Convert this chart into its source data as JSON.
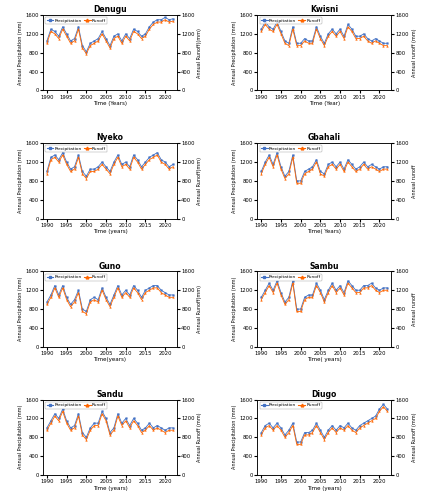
{
  "subplots": [
    {
      "title": "Denugu",
      "xlabel": "Time (Years)",
      "ylim": [
        0,
        1600
      ],
      "runoff_ylim": [
        0,
        1600
      ]
    },
    {
      "title": "Kwisni",
      "xlabel": "Time (Year)",
      "ylim": [
        0,
        1600
      ],
      "runoff_ylim": [
        0,
        1600
      ]
    },
    {
      "title": "Nyeko",
      "xlabel": "Time (years)",
      "ylim": [
        0,
        1600
      ],
      "runoff_ylim": [
        0,
        1600
      ]
    },
    {
      "title": "Gbahali",
      "xlabel": "Time( Years)",
      "ylim": [
        0,
        1600
      ],
      "runoff_ylim": [
        0,
        1600
      ]
    },
    {
      "title": "Guno",
      "xlabel": "Time(years)",
      "ylim": [
        0,
        1600
      ],
      "runoff_ylim": [
        0,
        1600
      ]
    },
    {
      "title": "Sambu",
      "xlabel": "Time( years)",
      "ylim": [
        0,
        1600
      ],
      "runoff_ylim": [
        0,
        1600
      ]
    },
    {
      "title": "Sandu",
      "xlabel": "Time (years)",
      "ylim": [
        0,
        1600
      ],
      "runoff_ylim": [
        0,
        1600
      ]
    },
    {
      "title": "Diugo",
      "xlabel": "Time (years)",
      "ylim": [
        0,
        1600
      ],
      "runoff_ylim": [
        0,
        1600
      ]
    }
  ],
  "years": [
    1990,
    1991,
    1992,
    1993,
    1994,
    1995,
    1996,
    1997,
    1998,
    1999,
    2000,
    2001,
    2002,
    2003,
    2004,
    2005,
    2006,
    2007,
    2008,
    2009,
    2010,
    2011,
    2012,
    2013,
    2014,
    2015,
    2016,
    2017,
    2018,
    2019,
    2020,
    2021,
    2022
  ],
  "precip_color": "#4472C4",
  "runoff_color": "#FF6600",
  "precip_label": "Precipitation",
  "runoff_label": "Runoff",
  "xticks": [
    1990,
    1995,
    2000,
    2005,
    2010,
    2015,
    2020
  ],
  "yticks": [
    0,
    400,
    800,
    1200,
    1600
  ],
  "right_ylabels": [
    "Annual Runoff((mm)",
    "Annual runoff (mm)",
    "Annual Runoff(mm)",
    "Annual runoff",
    "Annual Runoff(mm)",
    "Annual runoff",
    "Annual Runoff (mm)",
    "Annual Runoff (mm)"
  ],
  "left_ylabels": [
    "Annual Precipitation (mm)",
    "Annual Precipitation (mm)",
    "Annual Precipitation (mm)",
    "Annual Precipitation (mm)",
    "Annual Precipitation (mm)",
    "Annual Precipitation (mm)",
    "Annual Precipitation (mm)",
    "Annual Precipitation (mm)"
  ],
  "data": {
    "Denugu": {
      "precip": [
        1050,
        1300,
        1250,
        1150,
        1350,
        1200,
        1050,
        1100,
        1350,
        950,
        820,
        1000,
        1050,
        1100,
        1250,
        1100,
        950,
        1150,
        1200,
        1050,
        1200,
        1100,
        1300,
        1250,
        1150,
        1200,
        1350,
        1450,
        1500,
        1500,
        1550,
        1500,
        1520
      ],
      "runoff": [
        1000,
        1250,
        1200,
        1100,
        1300,
        1150,
        1000,
        1050,
        1300,
        900,
        780,
        950,
        1000,
        1050,
        1200,
        1050,
        900,
        1100,
        1150,
        1000,
        1150,
        1050,
        1250,
        1200,
        1100,
        1150,
        1300,
        1400,
        1450,
        1450,
        1500,
        1450,
        1470
      ]
    },
    "Kwisni": {
      "precip": [
        1300,
        1450,
        1350,
        1300,
        1450,
        1250,
        1050,
        1000,
        1350,
        1000,
        1000,
        1100,
        1050,
        1050,
        1350,
        1150,
        1000,
        1200,
        1300,
        1200,
        1300,
        1150,
        1400,
        1300,
        1150,
        1150,
        1200,
        1100,
        1050,
        1100,
        1050,
        1000,
        1000
      ],
      "runoff": [
        1250,
        1400,
        1300,
        1250,
        1400,
        1200,
        1000,
        950,
        1300,
        950,
        950,
        1050,
        1000,
        1000,
        1300,
        1100,
        950,
        1150,
        1250,
        1150,
        1250,
        1100,
        1350,
        1250,
        1100,
        1100,
        1150,
        1050,
        1000,
        1050,
        1000,
        950,
        950
      ]
    },
    "Nyeko": {
      "precip": [
        1000,
        1300,
        1350,
        1250,
        1400,
        1200,
        1050,
        1100,
        1350,
        1000,
        900,
        1050,
        1050,
        1100,
        1200,
        1100,
        1000,
        1200,
        1350,
        1150,
        1200,
        1100,
        1350,
        1250,
        1100,
        1200,
        1300,
        1350,
        1400,
        1250,
        1200,
        1100,
        1150
      ],
      "runoff": [
        950,
        1250,
        1300,
        1200,
        1350,
        1150,
        1000,
        1050,
        1300,
        950,
        850,
        1000,
        1000,
        1050,
        1150,
        1050,
        950,
        1150,
        1300,
        1100,
        1150,
        1050,
        1300,
        1200,
        1050,
        1150,
        1250,
        1300,
        1350,
        1200,
        1150,
        1050,
        1100
      ]
    },
    "Gbahali": {
      "precip": [
        1000,
        1200,
        1350,
        1150,
        1400,
        1100,
        900,
        1000,
        1350,
        800,
        800,
        1000,
        1050,
        1100,
        1250,
        1000,
        950,
        1150,
        1200,
        1100,
        1200,
        1050,
        1250,
        1150,
        1050,
        1100,
        1200,
        1100,
        1150,
        1100,
        1050,
        1100,
        1100
      ],
      "runoff": [
        950,
        1150,
        1300,
        1100,
        1350,
        1050,
        850,
        950,
        1300,
        750,
        750,
        950,
        1000,
        1050,
        1200,
        950,
        900,
        1100,
        1150,
        1050,
        1150,
        1000,
        1200,
        1100,
        1000,
        1050,
        1150,
        1050,
        1100,
        1050,
        1000,
        1050,
        1050
      ]
    },
    "Guno": {
      "precip": [
        950,
        1100,
        1300,
        1100,
        1300,
        1050,
        900,
        1000,
        1200,
        800,
        750,
        1000,
        1050,
        1000,
        1250,
        1050,
        900,
        1100,
        1300,
        1100,
        1200,
        1100,
        1300,
        1200,
        1050,
        1200,
        1250,
        1300,
        1300,
        1200,
        1150,
        1100,
        1100
      ],
      "runoff": [
        900,
        1050,
        1250,
        1050,
        1250,
        1000,
        850,
        950,
        1150,
        750,
        700,
        950,
        1000,
        950,
        1200,
        1000,
        850,
        1050,
        1250,
        1050,
        1150,
        1050,
        1250,
        1150,
        1000,
        1150,
        1200,
        1250,
        1250,
        1150,
        1100,
        1050,
        1050
      ]
    },
    "Sambu": {
      "precip": [
        1050,
        1200,
        1350,
        1200,
        1400,
        1150,
        950,
        1050,
        1400,
        800,
        800,
        1050,
        1100,
        1100,
        1350,
        1200,
        1000,
        1200,
        1350,
        1200,
        1300,
        1150,
        1400,
        1300,
        1200,
        1200,
        1300,
        1300,
        1350,
        1250,
        1200,
        1250,
        1250
      ],
      "runoff": [
        1000,
        1150,
        1300,
        1150,
        1350,
        1100,
        900,
        1000,
        1350,
        750,
        750,
        1000,
        1050,
        1050,
        1300,
        1150,
        950,
        1150,
        1300,
        1150,
        1250,
        1100,
        1350,
        1250,
        1150,
        1150,
        1250,
        1250,
        1300,
        1200,
        1150,
        1200,
        1200
      ]
    },
    "Sandu": {
      "precip": [
        1000,
        1150,
        1300,
        1200,
        1400,
        1150,
        1000,
        1050,
        1300,
        900,
        800,
        1000,
        1100,
        1100,
        1350,
        1200,
        900,
        1000,
        1300,
        1100,
        1200,
        1050,
        1200,
        1100,
        950,
        1000,
        1100,
        1000,
        1050,
        1000,
        950,
        1000,
        1000
      ],
      "runoff": [
        950,
        1100,
        1250,
        1150,
        1350,
        1100,
        950,
        1000,
        1250,
        850,
        750,
        950,
        1050,
        1050,
        1300,
        1150,
        850,
        950,
        1250,
        1050,
        1150,
        1000,
        1150,
        1050,
        900,
        950,
        1050,
        950,
        1000,
        950,
        900,
        950,
        950
      ]
    },
    "Diugo": {
      "precip": [
        900,
        1050,
        1100,
        1000,
        1100,
        1000,
        850,
        950,
        1100,
        700,
        700,
        900,
        900,
        950,
        1100,
        950,
        800,
        950,
        1050,
        950,
        1050,
        1000,
        1100,
        1000,
        950,
        1050,
        1100,
        1150,
        1200,
        1250,
        1400,
        1500,
        1400
      ],
      "runoff": [
        850,
        1000,
        1050,
        950,
        1050,
        950,
        800,
        900,
        1050,
        650,
        650,
        850,
        850,
        900,
        1050,
        900,
        750,
        900,
        1000,
        900,
        1000,
        950,
        1050,
        950,
        900,
        1000,
        1050,
        1100,
        1150,
        1200,
        1350,
        1450,
        1350
      ]
    }
  }
}
